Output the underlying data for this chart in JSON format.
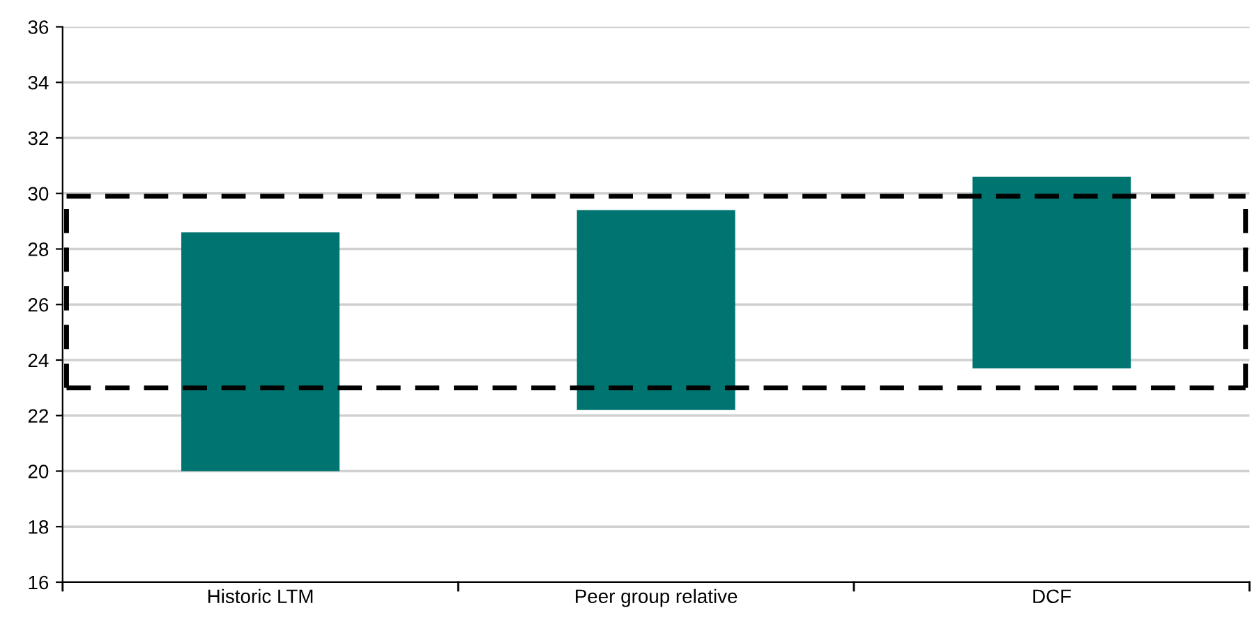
{
  "chart_data": {
    "type": "bar",
    "categories": [
      "Historic LTM",
      "Peer group relative",
      "DCF"
    ],
    "values": [
      8.6,
      7.2,
      6.9
    ],
    "base": [
      20,
      22.2,
      23.7
    ],
    "color": "#007470",
    "ylim": [
      16,
      36
    ],
    "yticks": [
      16,
      18,
      20,
      22,
      24,
      26,
      28,
      30,
      32,
      34,
      36
    ],
    "grid": "y",
    "ref_lines": [
      {
        "axis": "y",
        "value": 23,
        "color": "#000000",
        "line_style": "dashed"
      },
      {
        "axis": "y",
        "value": 29.9,
        "color": "#000000",
        "line_style": "dashed"
      }
    ]
  }
}
